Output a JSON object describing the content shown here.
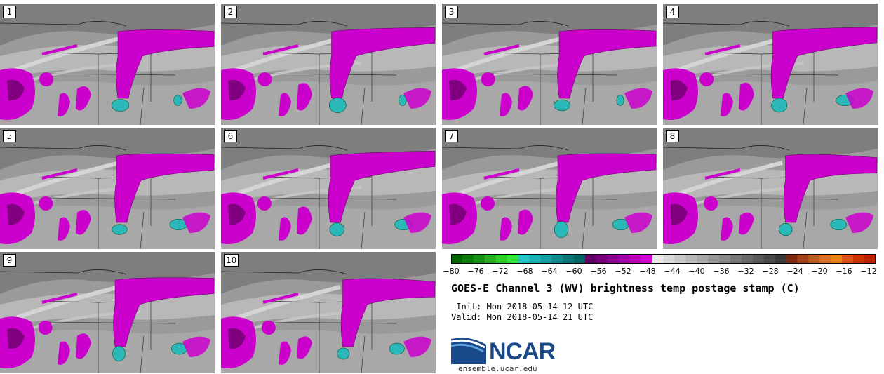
{
  "panels": [
    {
      "label": "1"
    },
    {
      "label": "2"
    },
    {
      "label": "3"
    },
    {
      "label": "4"
    },
    {
      "label": "5"
    },
    {
      "label": "6"
    },
    {
      "label": "7"
    },
    {
      "label": "8"
    },
    {
      "label": "9"
    },
    {
      "label": "10"
    }
  ],
  "colorbar": {
    "ticks": [
      "−80",
      "−76",
      "−72",
      "−68",
      "−64",
      "−60",
      "−56",
      "−52",
      "−48",
      "−44",
      "−40",
      "−36",
      "−32",
      "−28",
      "−24",
      "−20",
      "−16",
      "−12"
    ],
    "colors": [
      "#006400",
      "#0a7a0a",
      "#159015",
      "#20b020",
      "#28d028",
      "#30e830",
      "#20c8c8",
      "#18b4b4",
      "#10a0a0",
      "#088c8c",
      "#047878",
      "#006464",
      "#600060",
      "#780078",
      "#900090",
      "#a800a8",
      "#c000c0",
      "#d800d8",
      "#e8e8e8",
      "#d8d8d8",
      "#c8c8c8",
      "#b8b8b8",
      "#a8a8a8",
      "#989898",
      "#888888",
      "#787878",
      "#686868",
      "#585858",
      "#484848",
      "#383838",
      "#7a2a10",
      "#a0401a",
      "#c05820",
      "#e07020",
      "#f08010",
      "#e05010",
      "#d03000",
      "#c02000"
    ]
  },
  "title": "GOES-E Channel 3 (WV) brightness temp postage stamp (C)",
  "init": " Init: Mon 2018-05-14 12 UTC",
  "valid": "Valid: Mon 2018-05-14 21 UTC",
  "logo_text": "NCAR",
  "site": "ensemble.ucar.edu",
  "colors": {
    "magenta": "#cc00cc",
    "teal": "#2ab8b8",
    "gray_bg": "#9a9a9a"
  }
}
